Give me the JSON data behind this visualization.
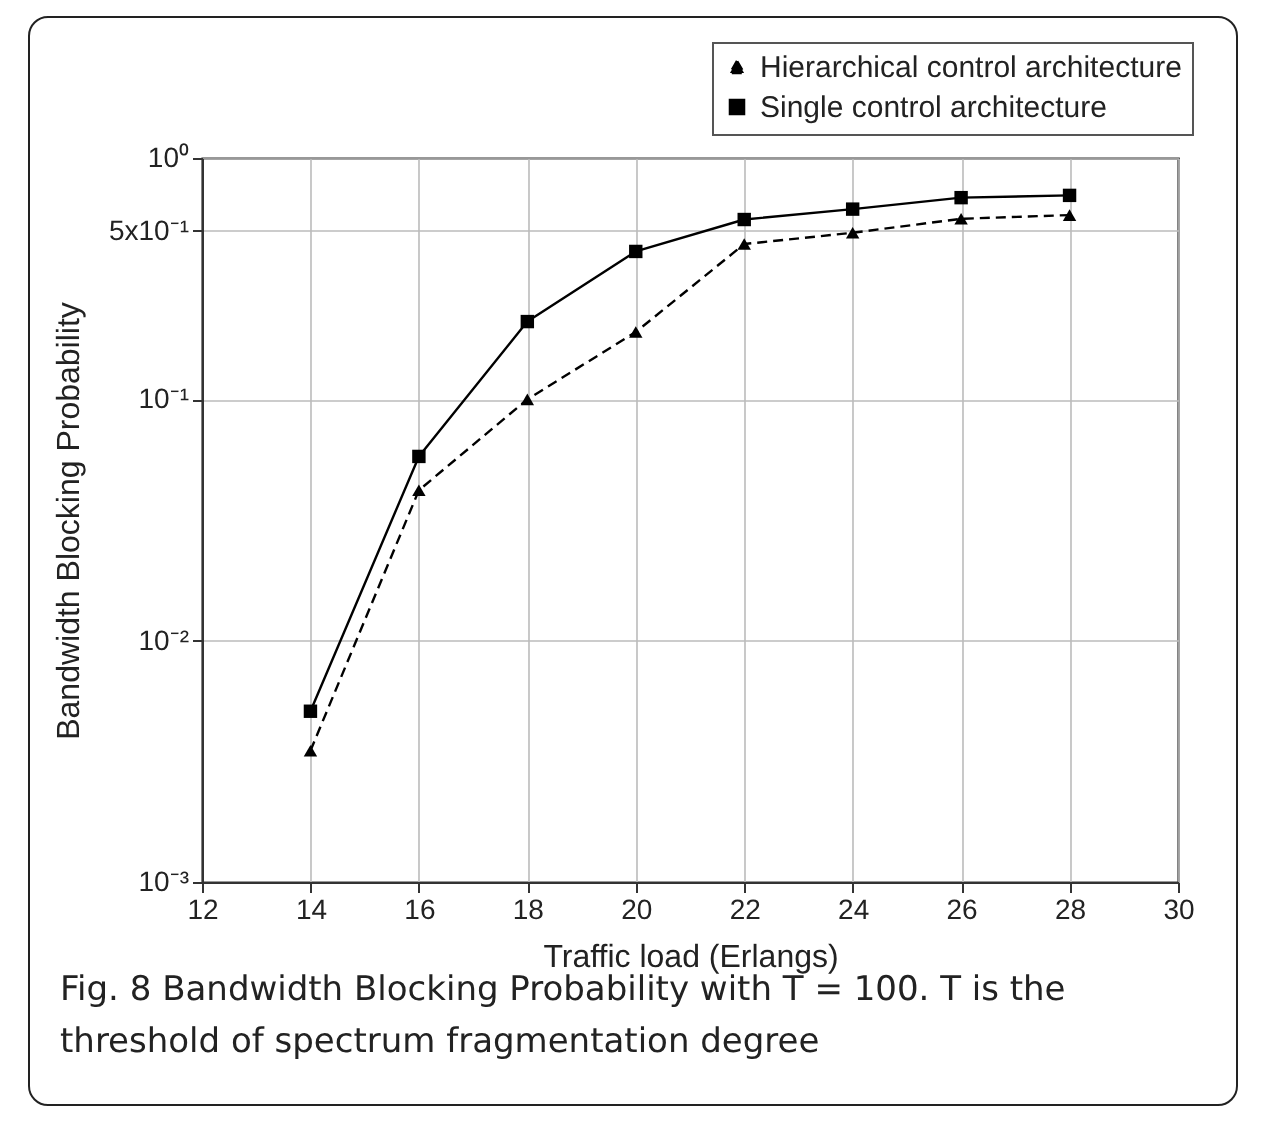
{
  "chart_data": {
    "type": "line",
    "xlabel": "Traffic load (Erlangs)",
    "ylabel": "Bandwidth Blocking Probability",
    "x": [
      14,
      16,
      18,
      20,
      22,
      24,
      26,
      28
    ],
    "series": [
      {
        "name": "Hierarchical control architecture",
        "color": "#000000",
        "marker": "triangle",
        "line_style": "dashed",
        "values": [
          0.0035,
          0.042,
          0.1,
          0.19,
          0.44,
          0.49,
          0.56,
          0.58
        ]
      },
      {
        "name": "Single control architecture",
        "color": "#000000",
        "marker": "square",
        "line_style": "solid",
        "values": [
          0.0051,
          0.058,
          0.21,
          0.41,
          0.556,
          0.614,
          0.685,
          0.7
        ]
      }
    ],
    "xlim": [
      12,
      30
    ],
    "xticks": [
      12,
      14,
      16,
      18,
      20,
      22,
      24,
      26,
      28,
      30
    ],
    "ylim": [
      0.001,
      1
    ],
    "yticks": [
      {
        "value": 0.001,
        "label": "10⁻³"
      },
      {
        "value": 0.01,
        "label": "10⁻²"
      },
      {
        "value": 0.1,
        "label": "10⁻¹"
      },
      {
        "value": 0.5,
        "label": "5x10⁻¹"
      },
      {
        "value": 1,
        "label": "10⁰"
      }
    ],
    "log": "y",
    "grid": true,
    "legend": "top right",
    "annotations": [
      "Fig. 8 Bandwidth Blocking Probability with T = 100. T is the threshold of spectrum fragmentation degree"
    ]
  }
}
